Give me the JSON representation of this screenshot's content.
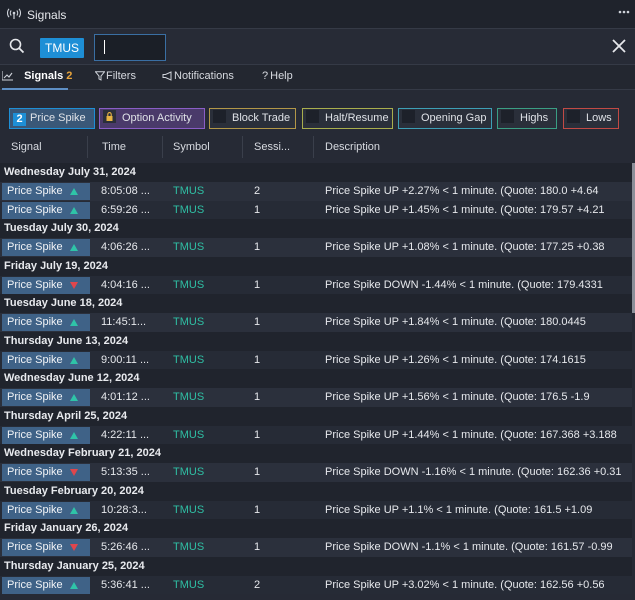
{
  "window": {
    "title": "Signals",
    "more_icon": "ellipsis-icon"
  },
  "search": {
    "chip": "TMUS",
    "value": "",
    "placeholder": ""
  },
  "tabs": [
    {
      "label": "Signals",
      "badge": "2"
    },
    {
      "label": "Filters"
    },
    {
      "label": "Notifications"
    },
    {
      "label": "Help"
    }
  ],
  "filters": [
    {
      "label": "Price Spike",
      "count": "2",
      "color": "#1e8fd6",
      "active": true
    },
    {
      "label": "Option Activity",
      "color": "#8a5ec7",
      "active": false
    },
    {
      "label": "Block Trade",
      "color": "#b29748",
      "active": false
    },
    {
      "label": "Halt/Resume",
      "color": "#a9ae4d",
      "active": false
    },
    {
      "label": "Opening Gap",
      "color": "#3d9fb6",
      "active": false
    },
    {
      "label": "Highs",
      "color": "#3a9e84",
      "active": false
    },
    {
      "label": "Lows",
      "color": "#c24a45",
      "active": false
    }
  ],
  "columns": [
    "Signal",
    "Time",
    "Symbol",
    "Sessi...",
    "Description"
  ],
  "groups": [
    {
      "date": "Wednesday July 31, 2024",
      "rows": [
        {
          "signal": "Price Spike",
          "dir": "up",
          "time": "8:05:08 ...",
          "symbol": "TMUS",
          "session": "2",
          "desc": "Price Spike UP +2.27% < 1 minute. (Quote: 180.0 +4.64"
        },
        {
          "signal": "Price Spike",
          "dir": "up",
          "time": "6:59:26 ...",
          "symbol": "TMUS",
          "session": "1",
          "desc": "Price Spike UP +1.45% < 1 minute. (Quote: 179.57 +4.21"
        }
      ]
    },
    {
      "date": "Tuesday July 30, 2024",
      "rows": [
        {
          "signal": "Price Spike",
          "dir": "up",
          "time": "4:06:26 ...",
          "symbol": "TMUS",
          "session": "1",
          "desc": "Price Spike UP +1.08% < 1 minute. (Quote: 177.25 +0.38"
        }
      ]
    },
    {
      "date": "Friday July 19, 2024",
      "rows": [
        {
          "signal": "Price Spike",
          "dir": "down",
          "time": "4:04:16 ...",
          "symbol": "TMUS",
          "session": "1",
          "desc": "Price Spike DOWN -1.44% < 1 minute. (Quote: 179.4331"
        }
      ]
    },
    {
      "date": "Tuesday June 18, 2024",
      "rows": [
        {
          "signal": "Price Spike",
          "dir": "up",
          "time": "11:45:1...",
          "symbol": "TMUS",
          "session": "1",
          "desc": "Price Spike UP +1.84% < 1 minute. (Quote: 180.0445"
        }
      ]
    },
    {
      "date": "Thursday June 13, 2024",
      "rows": [
        {
          "signal": "Price Spike",
          "dir": "up",
          "time": "9:00:11 ...",
          "symbol": "TMUS",
          "session": "1",
          "desc": "Price Spike UP +1.26% < 1 minute. (Quote: 174.1615"
        }
      ]
    },
    {
      "date": "Wednesday June 12, 2024",
      "rows": [
        {
          "signal": "Price Spike",
          "dir": "up",
          "time": "4:01:12 ...",
          "symbol": "TMUS",
          "session": "1",
          "desc": "Price Spike UP +1.56% < 1 minute. (Quote: 176.5 -1.9"
        }
      ]
    },
    {
      "date": "Thursday April 25, 2024",
      "rows": [
        {
          "signal": "Price Spike",
          "dir": "up",
          "time": "4:22:11 ...",
          "symbol": "TMUS",
          "session": "1",
          "desc": "Price Spike UP +1.44% < 1 minute. (Quote: 167.368 +3.188"
        }
      ]
    },
    {
      "date": "Wednesday February 21, 2024",
      "rows": [
        {
          "signal": "Price Spike",
          "dir": "down",
          "time": "5:13:35 ...",
          "symbol": "TMUS",
          "session": "1",
          "desc": "Price Spike DOWN -1.16% < 1 minute. (Quote: 162.36 +0.31"
        }
      ]
    },
    {
      "date": "Tuesday February 20, 2024",
      "rows": [
        {
          "signal": "Price Spike",
          "dir": "up",
          "time": "10:28:3...",
          "symbol": "TMUS",
          "session": "1",
          "desc": "Price Spike UP +1.1% < 1 minute. (Quote: 161.5 +1.09"
        }
      ]
    },
    {
      "date": "Friday January 26, 2024",
      "rows": [
        {
          "signal": "Price Spike",
          "dir": "down",
          "time": "5:26:46 ...",
          "symbol": "TMUS",
          "session": "1",
          "desc": "Price Spike DOWN -1.1% < 1 minute. (Quote: 161.57 -0.99"
        }
      ]
    },
    {
      "date": "Thursday January 25, 2024",
      "rows": [
        {
          "signal": "Price Spike",
          "dir": "up",
          "time": "5:36:41 ...",
          "symbol": "TMUS",
          "session": "2",
          "desc": "Price Spike UP +3.02% < 1 minute. (Quote: 162.56 +0.56"
        }
      ]
    }
  ]
}
